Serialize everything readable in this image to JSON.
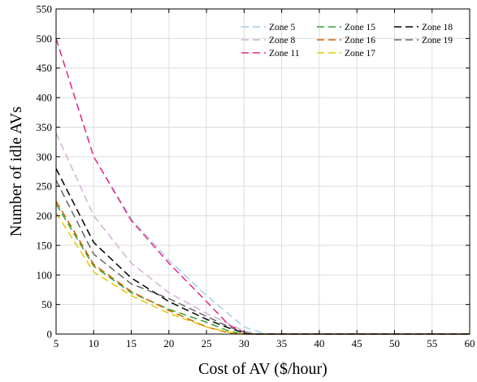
{
  "chart_data": {
    "type": "line",
    "xlabel": "Cost of AV ($/hour)",
    "ylabel": "Number of idle AVs",
    "xlim": [
      5,
      60
    ],
    "ylim": [
      0,
      550
    ],
    "xticks": [
      5,
      10,
      15,
      20,
      25,
      30,
      35,
      40,
      45,
      50,
      55,
      60
    ],
    "yticks": [
      0,
      50,
      100,
      150,
      200,
      250,
      300,
      350,
      400,
      450,
      500,
      550
    ],
    "grid": true,
    "legend_position": "top-right",
    "series": [
      {
        "name": "Zone 5",
        "color": "#a6cee3",
        "points": [
          [
            5,
            500
          ],
          [
            10,
            300
          ],
          [
            15,
            195
          ],
          [
            20,
            125
          ],
          [
            25,
            65
          ],
          [
            30,
            12
          ],
          [
            33,
            0
          ],
          [
            60,
            0
          ]
        ]
      },
      {
        "name": "Zone 8",
        "color": "#d3b0d6",
        "points": [
          [
            5,
            340
          ],
          [
            10,
            200
          ],
          [
            15,
            120
          ],
          [
            20,
            70
          ],
          [
            25,
            35
          ],
          [
            30,
            5
          ],
          [
            32,
            0
          ],
          [
            60,
            0
          ]
        ]
      },
      {
        "name": "Zone 11",
        "color": "#e7298a",
        "points": [
          [
            5,
            500
          ],
          [
            10,
            300
          ],
          [
            15,
            192
          ],
          [
            20,
            120
          ],
          [
            25,
            55
          ],
          [
            28,
            15
          ],
          [
            30,
            3
          ],
          [
            31,
            0
          ],
          [
            60,
            0
          ]
        ]
      },
      {
        "name": "Zone 15",
        "color": "#33a02c",
        "points": [
          [
            5,
            220
          ],
          [
            10,
            115
          ],
          [
            15,
            70
          ],
          [
            20,
            42
          ],
          [
            25,
            20
          ],
          [
            28,
            5
          ],
          [
            30,
            0
          ],
          [
            60,
            0
          ]
        ]
      },
      {
        "name": "Zone 16",
        "color": "#d95f02",
        "points": [
          [
            5,
            225
          ],
          [
            10,
            118
          ],
          [
            15,
            72
          ],
          [
            20,
            40
          ],
          [
            25,
            12
          ],
          [
            28,
            2
          ],
          [
            29,
            0
          ],
          [
            60,
            0
          ]
        ]
      },
      {
        "name": "Zone 17",
        "color": "#e6c800",
        "points": [
          [
            5,
            205
          ],
          [
            10,
            105
          ],
          [
            15,
            65
          ],
          [
            20,
            35
          ],
          [
            25,
            12
          ],
          [
            28,
            3
          ],
          [
            30,
            0
          ],
          [
            60,
            0
          ]
        ]
      },
      {
        "name": "Zone 18",
        "color": "#000000",
        "points": [
          [
            5,
            280
          ],
          [
            10,
            155
          ],
          [
            15,
            95
          ],
          [
            20,
            55
          ],
          [
            25,
            25
          ],
          [
            28,
            10
          ],
          [
            30,
            2
          ],
          [
            31,
            0
          ],
          [
            60,
            0
          ]
        ]
      },
      {
        "name": "Zone 19",
        "color": "#666666",
        "points": [
          [
            5,
            260
          ],
          [
            10,
            135
          ],
          [
            15,
            85
          ],
          [
            20,
            60
          ],
          [
            25,
            30
          ],
          [
            28,
            12
          ],
          [
            30,
            3
          ],
          [
            31,
            0
          ],
          [
            60,
            0
          ]
        ]
      }
    ]
  }
}
